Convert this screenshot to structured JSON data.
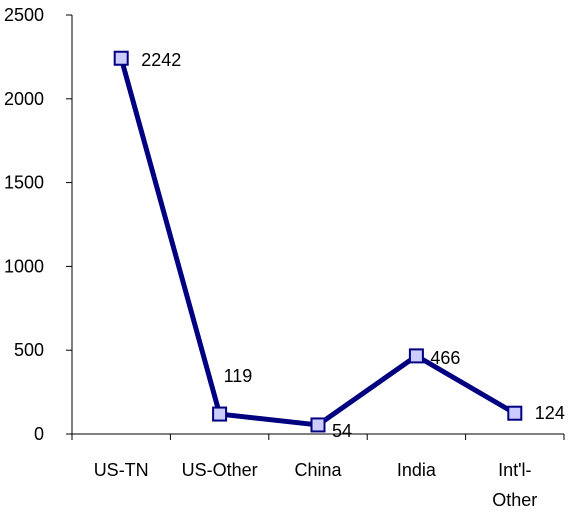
{
  "chart_data": {
    "type": "line",
    "categories": [
      "US-TN",
      "US-Other",
      "China",
      "India",
      "Int'l-Other"
    ],
    "category_lines": [
      [
        "US-TN"
      ],
      [
        "US-Other"
      ],
      [
        "China"
      ],
      [
        "India"
      ],
      [
        "Int'l-",
        "Other"
      ]
    ],
    "values": [
      2242,
      119,
      54,
      466,
      124
    ],
    "data_labels": [
      "2242",
      "119",
      "54",
      "466",
      "124"
    ],
    "ylim": [
      0,
      2500
    ],
    "yticks": [
      0,
      500,
      1000,
      1500,
      2000,
      2500
    ],
    "ytick_labels": [
      "0",
      "500",
      "1000",
      "1500",
      "2000",
      "2500"
    ],
    "grid": false,
    "legend": "none",
    "title": "",
    "xlabel": "",
    "ylabel": "",
    "colors": {
      "line": "#000080",
      "marker_fill": "#ccccff",
      "marker_stroke": "#000080",
      "axis": "#000000"
    }
  }
}
